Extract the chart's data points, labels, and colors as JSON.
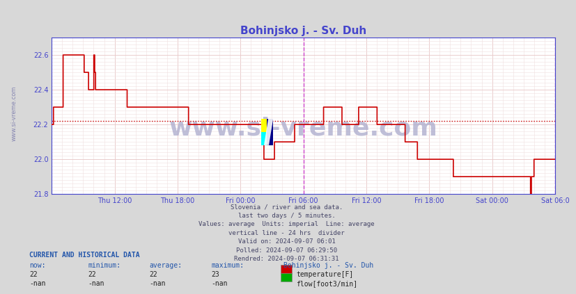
{
  "title": "Bohinjsko j. - Sv. Duh",
  "bg_color": "#d8d8d8",
  "plot_bg_color": "#ffffff",
  "minor_grid_color": "#f0e0e0",
  "line_color": "#cc0000",
  "average_value": 22.22,
  "divider_color": "#cc44cc",
  "ylabel_color": "#4444cc",
  "xlabel_color": "#4444cc",
  "title_color": "#4444cc",
  "ymin": 21.8,
  "ymax": 22.7,
  "yticks": [
    21.8,
    22.0,
    22.2,
    22.4,
    22.6
  ],
  "watermark_text": "www.si-vreme.com",
  "watermark_color": "#aaaacc",
  "subtitle_lines": [
    "Slovenia / river and sea data.",
    "last two days / 5 minutes.",
    "Values: average  Units: imperial  Line: average",
    "vertical line - 24 hrs  divider",
    "Valid on: 2024-09-07 06:01",
    "Polled: 2024-09-07 06:29:50",
    "Rendred: 2024-09-07 06:31:31"
  ],
  "footer_label": "CURRENT AND HISTORICAL DATA",
  "footer_cols": [
    "now:",
    "minimum:",
    "average:",
    "maximum:",
    "Bohinjsko j. - Sv. Duh"
  ],
  "footer_temp_row": [
    "22",
    "22",
    "22",
    "23"
  ],
  "footer_flow_row": [
    "-nan",
    "-nan",
    "-nan",
    "-nan"
  ],
  "legend_temp": "temperature[F]",
  "legend_flow": "flow[foot3/min]",
  "xtick_labels": [
    "Thu 12:00",
    "Thu 18:00",
    "Fri 00:00",
    "Fri 06:00",
    "Fri 12:00",
    "Fri 18:00",
    "Sat 00:00",
    "Sat 06:0"
  ],
  "xtick_positions": [
    0.125,
    0.25,
    0.375,
    0.5,
    0.625,
    0.75,
    0.875,
    1.0
  ],
  "temp_data": [
    22.2,
    22.2,
    22.3,
    22.3,
    22.3,
    22.3,
    22.3,
    22.3,
    22.3,
    22.3,
    22.3,
    22.3,
    22.3,
    22.6,
    22.6,
    22.6,
    22.6,
    22.6,
    22.6,
    22.6,
    22.6,
    22.6,
    22.6,
    22.6,
    22.6,
    22.6,
    22.6,
    22.6,
    22.6,
    22.6,
    22.6,
    22.6,
    22.6,
    22.6,
    22.6,
    22.6,
    22.6,
    22.5,
    22.5,
    22.5,
    22.5,
    22.5,
    22.4,
    22.4,
    22.4,
    22.4,
    22.4,
    22.4,
    22.6,
    22.5,
    22.4,
    22.4,
    22.4,
    22.4,
    22.4,
    22.4,
    22.4,
    22.4,
    22.4,
    22.4,
    22.4,
    22.4,
    22.4,
    22.4,
    22.4,
    22.4,
    22.4,
    22.4,
    22.4,
    22.4,
    22.4,
    22.4,
    22.4,
    22.4,
    22.4,
    22.4,
    22.4,
    22.4,
    22.4,
    22.4,
    22.4,
    22.4,
    22.4,
    22.4,
    22.4,
    22.4,
    22.3,
    22.3,
    22.3,
    22.3,
    22.3,
    22.3,
    22.3,
    22.3,
    22.3,
    22.3,
    22.3,
    22.3,
    22.3,
    22.3,
    22.3,
    22.3,
    22.3,
    22.3,
    22.3,
    22.3,
    22.3,
    22.3,
    22.3,
    22.3,
    22.3,
    22.3,
    22.3,
    22.3,
    22.3,
    22.3,
    22.3,
    22.3,
    22.3,
    22.3,
    22.3,
    22.3,
    22.3,
    22.3,
    22.3,
    22.3,
    22.3,
    22.3,
    22.3,
    22.3,
    22.3,
    22.3,
    22.3,
    22.3,
    22.3,
    22.3,
    22.3,
    22.3,
    22.3,
    22.3,
    22.3,
    22.3,
    22.3,
    22.3,
    22.3,
    22.3,
    22.3,
    22.3,
    22.3,
    22.3,
    22.3,
    22.3,
    22.3,
    22.3,
    22.3,
    22.3,
    22.2,
    22.2,
    22.2,
    22.2,
    22.2,
    22.2,
    22.2,
    22.2,
    22.2,
    22.2,
    22.2,
    22.2,
    22.2,
    22.2,
    22.2,
    22.2,
    22.2,
    22.2,
    22.2,
    22.2,
    22.2,
    22.2,
    22.2,
    22.2,
    22.2,
    22.2,
    22.2,
    22.2,
    22.2,
    22.2,
    22.2,
    22.2,
    22.2,
    22.2,
    22.2,
    22.2,
    22.2,
    22.2,
    22.2,
    22.2,
    22.2,
    22.2,
    22.2,
    22.2,
    22.2,
    22.2,
    22.2,
    22.2,
    22.2,
    22.2,
    22.2,
    22.2,
    22.2,
    22.2,
    22.2,
    22.2,
    22.2,
    22.2,
    22.2,
    22.2,
    22.2,
    22.2,
    22.2,
    22.2,
    22.2,
    22.2,
    22.2,
    22.2,
    22.2,
    22.2,
    22.2,
    22.2,
    22.2,
    22.2,
    22.2,
    22.2,
    22.2,
    22.2,
    22.2,
    22.2,
    22.2,
    22.2,
    22.2,
    22.2,
    22.2,
    22.2,
    22.0,
    22.0,
    22.0,
    22.0,
    22.0,
    22.0,
    22.0,
    22.0,
    22.0,
    22.0,
    22.0,
    22.0,
    22.1,
    22.1,
    22.1,
    22.1,
    22.1,
    22.1,
    22.1,
    22.1,
    22.1,
    22.1,
    22.1,
    22.1,
    22.1,
    22.1,
    22.1,
    22.1,
    22.1,
    22.1,
    22.1,
    22.1,
    22.1,
    22.1,
    22.1,
    22.2,
    22.2,
    22.2,
    22.2,
    22.2,
    22.2,
    22.2,
    22.2,
    22.2,
    22.2,
    22.2,
    22.2,
    22.2,
    22.2,
    22.2,
    22.2,
    22.2,
    22.2,
    22.2,
    22.2,
    22.2,
    22.2,
    22.2,
    22.2,
    22.2,
    22.2,
    22.2,
    22.2,
    22.2,
    22.2,
    22.2,
    22.2,
    22.2,
    22.3,
    22.3,
    22.3,
    22.3,
    22.3,
    22.3,
    22.3,
    22.3,
    22.3,
    22.3,
    22.3,
    22.3,
    22.3,
    22.3,
    22.3,
    22.3,
    22.3,
    22.3,
    22.3,
    22.3,
    22.3,
    22.2,
    22.2,
    22.2,
    22.2,
    22.2,
    22.2,
    22.2,
    22.2,
    22.2,
    22.2,
    22.2,
    22.2,
    22.2,
    22.2,
    22.2,
    22.2,
    22.2,
    22.2,
    22.2,
    22.3,
    22.3,
    22.3,
    22.3,
    22.3,
    22.3,
    22.3,
    22.3,
    22.3,
    22.3,
    22.3,
    22.3,
    22.3,
    22.3,
    22.3,
    22.3,
    22.3,
    22.3,
    22.3,
    22.3,
    22.3,
    22.2,
    22.2,
    22.2,
    22.2,
    22.2,
    22.2,
    22.2,
    22.2,
    22.2,
    22.2,
    22.2,
    22.2,
    22.2,
    22.2,
    22.2,
    22.2,
    22.2,
    22.2,
    22.2,
    22.2,
    22.2,
    22.2,
    22.2,
    22.2,
    22.2,
    22.2,
    22.2,
    22.2,
    22.2,
    22.2,
    22.2,
    22.2,
    22.1,
    22.1,
    22.1,
    22.1,
    22.1,
    22.1,
    22.1,
    22.1,
    22.1,
    22.1,
    22.1,
    22.1,
    22.1,
    22.1,
    22.0,
    22.0,
    22.0,
    22.0,
    22.0,
    22.0,
    22.0,
    22.0,
    22.0,
    22.0,
    22.0,
    22.0,
    22.0,
    22.0,
    22.0,
    22.0,
    22.0,
    22.0,
    22.0,
    22.0,
    22.0,
    22.0,
    22.0,
    22.0,
    22.0,
    22.0,
    22.0,
    22.0,
    22.0,
    22.0,
    22.0,
    22.0,
    22.0,
    22.0,
    22.0,
    22.0,
    22.0,
    22.0,
    22.0,
    22.0,
    22.0,
    21.9,
    21.9,
    21.9,
    21.9,
    21.9,
    21.9,
    21.9,
    21.9,
    21.9,
    21.9,
    21.9,
    21.9,
    21.9,
    21.9,
    21.9,
    21.9,
    21.9,
    21.9,
    21.9,
    21.9,
    21.9,
    21.9,
    21.9,
    21.9,
    21.9,
    21.9,
    21.9,
    21.9,
    21.9,
    21.9,
    21.9,
    21.9,
    21.9,
    21.9,
    21.9,
    21.9,
    21.9,
    21.9,
    21.9,
    21.9,
    21.9,
    21.9,
    21.9,
    21.9,
    21.9,
    21.9,
    21.9,
    21.9,
    21.9,
    21.9,
    21.9,
    21.9,
    21.9,
    21.9,
    21.9,
    21.9,
    21.9,
    21.9,
    21.9,
    21.9,
    21.9,
    21.9,
    21.9,
    21.9,
    21.9,
    21.9,
    21.9,
    21.9,
    21.9,
    21.9,
    21.9,
    21.9,
    21.9,
    21.9,
    21.9,
    21.9,
    21.9,
    21.9,
    21.9,
    21.9,
    21.9,
    21.9,
    21.9,
    21.9,
    21.9,
    21.9,
    21.9,
    21.9,
    21.8,
    21.9,
    21.9,
    21.9,
    22.0,
    22.0,
    22.0,
    22.0,
    22.0,
    22.0,
    22.0,
    22.0,
    22.0,
    22.0,
    22.0,
    22.0,
    22.0,
    22.0,
    22.0,
    22.0,
    22.0,
    22.0,
    22.0,
    22.0,
    22.0,
    22.0,
    22.0,
    22.0,
    22.0
  ]
}
